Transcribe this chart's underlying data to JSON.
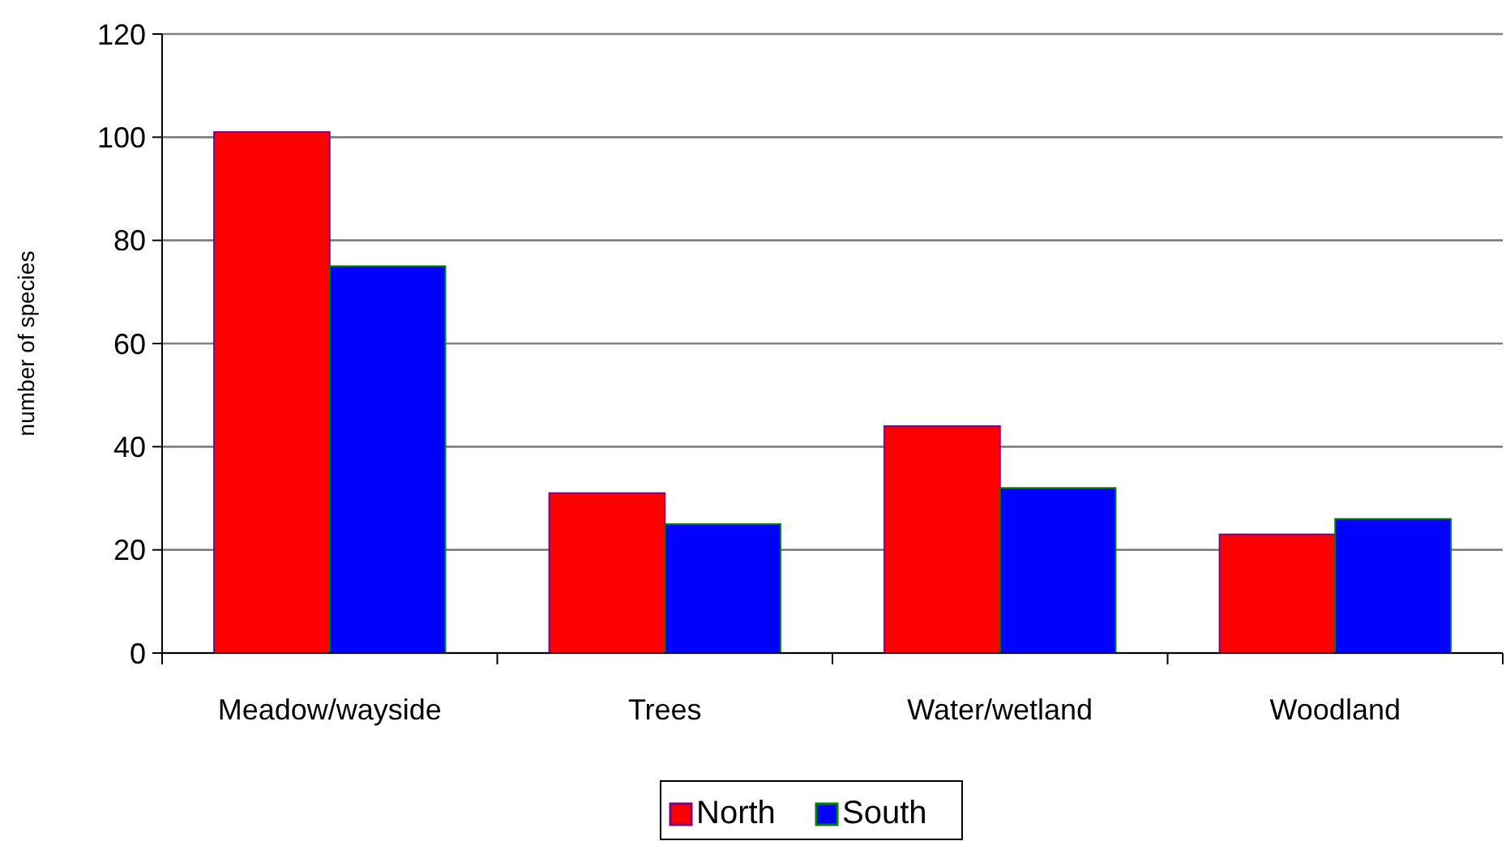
{
  "chart_data": {
    "type": "bar",
    "ylabel": "number of species",
    "categories": [
      "Meadow/wayside",
      "Trees",
      "Water/wetland",
      "Woodland"
    ],
    "series": [
      {
        "name": "North",
        "color": "#ff0000",
        "values": [
          101,
          31,
          44,
          23
        ]
      },
      {
        "name": "South",
        "color": "#0000ff",
        "values": [
          75,
          25,
          32,
          26
        ]
      }
    ],
    "ylim": [
      0,
      120
    ],
    "yticks": [
      0,
      20,
      40,
      60,
      80,
      100,
      120
    ],
    "grid": "y",
    "legend": "bottom"
  }
}
